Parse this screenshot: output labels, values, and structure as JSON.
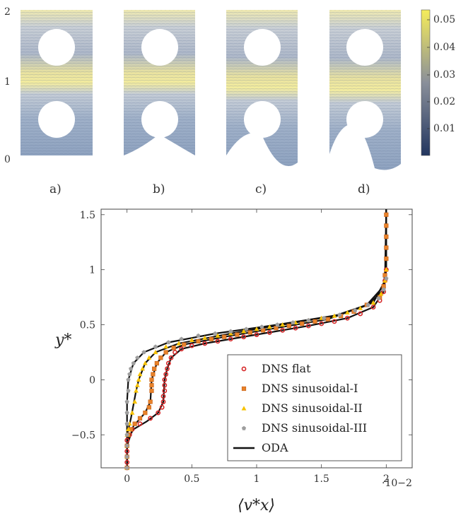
{
  "panels": {
    "labels": [
      "a)",
      "b)",
      "c)",
      "d)"
    ],
    "y_ticks": [
      "0",
      "1",
      "2"
    ]
  },
  "colorbar": {
    "ticks": [
      "0.05",
      "0.04",
      "0.03",
      "0.02",
      "0.01"
    ],
    "colors": {
      "high": "#f5ec5a",
      "mid": "#8a8f9a",
      "low": "#23365f"
    }
  },
  "chart_data": {
    "type": "scatter",
    "xlabel": "⟨v*x⟩",
    "ylabel": "y*",
    "x_multiplier": "·10−2",
    "xlim": [
      -0.2,
      2.2
    ],
    "ylim": [
      -0.8,
      1.55
    ],
    "x_ticks": [
      "0",
      "0.5",
      "1",
      "1.5",
      "2"
    ],
    "y_ticks": [
      "−0.5",
      "0",
      "0.5",
      "1",
      "1.5"
    ],
    "legend_position": "bottom-right",
    "series": [
      {
        "name": "DNS flat",
        "marker": "circle",
        "color": "#d62728",
        "points": [
          [
            0.0,
            -0.8
          ],
          [
            0.0,
            -0.75
          ],
          [
            0.0,
            -0.7
          ],
          [
            0.0,
            -0.65
          ],
          [
            0.0,
            -0.6
          ],
          [
            0.0,
            -0.55
          ],
          [
            0.02,
            -0.5
          ],
          [
            0.04,
            -0.45
          ],
          [
            0.1,
            -0.4
          ],
          [
            0.18,
            -0.35
          ],
          [
            0.24,
            -0.3
          ],
          [
            0.27,
            -0.25
          ],
          [
            0.28,
            -0.2
          ],
          [
            0.28,
            -0.15
          ],
          [
            0.29,
            -0.1
          ],
          [
            0.29,
            -0.05
          ],
          [
            0.29,
            0.0
          ],
          [
            0.3,
            0.05
          ],
          [
            0.31,
            0.1
          ],
          [
            0.32,
            0.15
          ],
          [
            0.34,
            0.2
          ],
          [
            0.37,
            0.25
          ],
          [
            0.42,
            0.28
          ],
          [
            0.5,
            0.31
          ],
          [
            0.6,
            0.33
          ],
          [
            0.7,
            0.35
          ],
          [
            0.8,
            0.37
          ],
          [
            0.9,
            0.39
          ],
          [
            1.0,
            0.41
          ],
          [
            1.1,
            0.43
          ],
          [
            1.2,
            0.45
          ],
          [
            1.3,
            0.47
          ],
          [
            1.4,
            0.49
          ],
          [
            1.5,
            0.51
          ],
          [
            1.6,
            0.53
          ],
          [
            1.7,
            0.56
          ],
          [
            1.8,
            0.6
          ],
          [
            1.9,
            0.66
          ],
          [
            1.95,
            0.72
          ],
          [
            1.98,
            0.8
          ],
          [
            1.99,
            0.9
          ],
          [
            2.0,
            1.0
          ]
        ]
      },
      {
        "name": "DNS sinusoidal-I",
        "marker": "square",
        "color": "#e8822a",
        "points": [
          [
            0.0,
            -0.8
          ],
          [
            0.0,
            -0.7
          ],
          [
            0.0,
            -0.6
          ],
          [
            0.01,
            -0.5
          ],
          [
            0.03,
            -0.45
          ],
          [
            0.06,
            -0.4
          ],
          [
            0.1,
            -0.35
          ],
          [
            0.14,
            -0.3
          ],
          [
            0.17,
            -0.25
          ],
          [
            0.18,
            -0.2
          ],
          [
            0.19,
            -0.1
          ],
          [
            0.19,
            -0.05
          ],
          [
            0.19,
            0.0
          ],
          [
            0.2,
            0.05
          ],
          [
            0.21,
            0.1
          ],
          [
            0.23,
            0.15
          ],
          [
            0.26,
            0.2
          ],
          [
            0.3,
            0.25
          ],
          [
            0.36,
            0.29
          ],
          [
            0.44,
            0.32
          ],
          [
            0.55,
            0.35
          ],
          [
            0.65,
            0.37
          ],
          [
            0.75,
            0.39
          ],
          [
            0.85,
            0.41
          ],
          [
            0.95,
            0.43
          ],
          [
            1.05,
            0.45
          ],
          [
            1.15,
            0.47
          ],
          [
            1.25,
            0.49
          ],
          [
            1.35,
            0.51
          ],
          [
            1.45,
            0.53
          ],
          [
            1.55,
            0.55
          ],
          [
            1.65,
            0.58
          ],
          [
            1.75,
            0.62
          ],
          [
            1.85,
            0.68
          ],
          [
            1.95,
            0.75
          ],
          [
            1.98,
            0.85
          ],
          [
            1.99,
            0.95
          ],
          [
            2.0,
            1.1
          ],
          [
            2.0,
            1.2
          ],
          [
            2.0,
            1.3
          ],
          [
            2.0,
            1.4
          ],
          [
            2.0,
            1.5
          ]
        ]
      },
      {
        "name": "DNS sinusoidal-II",
        "marker": "triangle",
        "color": "#f7c200",
        "points": [
          [
            0.0,
            -0.8
          ],
          [
            0.0,
            -0.7
          ],
          [
            0.0,
            -0.6
          ],
          [
            0.0,
            -0.5
          ],
          [
            0.01,
            -0.45
          ],
          [
            0.02,
            -0.4
          ],
          [
            0.04,
            -0.3
          ],
          [
            0.06,
            -0.2
          ],
          [
            0.07,
            -0.1
          ],
          [
            0.08,
            -0.05
          ],
          [
            0.09,
            0.0
          ],
          [
            0.1,
            0.05
          ],
          [
            0.12,
            0.1
          ],
          [
            0.14,
            0.15
          ],
          [
            0.17,
            0.2
          ],
          [
            0.22,
            0.25
          ],
          [
            0.3,
            0.3
          ],
          [
            0.4,
            0.33
          ],
          [
            0.5,
            0.36
          ],
          [
            0.6,
            0.38
          ],
          [
            0.7,
            0.4
          ],
          [
            0.8,
            0.42
          ],
          [
            0.9,
            0.44
          ],
          [
            1.0,
            0.46
          ],
          [
            1.1,
            0.48
          ],
          [
            1.2,
            0.5
          ],
          [
            1.3,
            0.52
          ],
          [
            1.4,
            0.54
          ],
          [
            1.5,
            0.56
          ],
          [
            1.6,
            0.58
          ],
          [
            1.7,
            0.61
          ],
          [
            1.8,
            0.65
          ],
          [
            1.9,
            0.7
          ],
          [
            1.96,
            0.78
          ],
          [
            1.99,
            0.9
          ],
          [
            2.0,
            1.0
          ]
        ]
      },
      {
        "name": "DNS sinusoidal-III",
        "marker": "pentagon",
        "color": "#9e9e9e",
        "points": [
          [
            0.0,
            -0.8
          ],
          [
            0.0,
            -0.7
          ],
          [
            0.0,
            -0.6
          ],
          [
            0.0,
            -0.5
          ],
          [
            0.0,
            -0.4
          ],
          [
            0.0,
            -0.3
          ],
          [
            0.0,
            -0.2
          ],
          [
            0.01,
            -0.1
          ],
          [
            0.01,
            0.0
          ],
          [
            0.02,
            0.05
          ],
          [
            0.03,
            0.1
          ],
          [
            0.05,
            0.15
          ],
          [
            0.08,
            0.2
          ],
          [
            0.13,
            0.25
          ],
          [
            0.22,
            0.3
          ],
          [
            0.32,
            0.34
          ],
          [
            0.42,
            0.37
          ],
          [
            0.55,
            0.4
          ],
          [
            0.68,
            0.42
          ],
          [
            0.8,
            0.44
          ],
          [
            0.92,
            0.46
          ],
          [
            1.04,
            0.48
          ],
          [
            1.16,
            0.5
          ],
          [
            1.28,
            0.52
          ],
          [
            1.4,
            0.54
          ],
          [
            1.52,
            0.56
          ],
          [
            1.64,
            0.59
          ],
          [
            1.76,
            0.63
          ],
          [
            1.86,
            0.68
          ],
          [
            1.94,
            0.74
          ],
          [
            1.98,
            0.82
          ],
          [
            2.0,
            0.92
          ]
        ]
      },
      {
        "name": "ODA",
        "marker": "line",
        "color": "#111111",
        "curves": [
          [
            [
              0.0,
              -0.8
            ],
            [
              0.0,
              -0.55
            ],
            [
              0.05,
              -0.45
            ],
            [
              0.15,
              -0.38
            ],
            [
              0.24,
              -0.3
            ],
            [
              0.28,
              -0.2
            ],
            [
              0.29,
              0.0
            ],
            [
              0.31,
              0.1
            ],
            [
              0.34,
              0.2
            ],
            [
              0.42,
              0.28
            ],
            [
              0.6,
              0.33
            ],
            [
              1.0,
              0.41
            ],
            [
              1.4,
              0.49
            ],
            [
              1.7,
              0.56
            ],
            [
              1.9,
              0.66
            ],
            [
              1.98,
              0.8
            ],
            [
              2.0,
              1.0
            ],
            [
              2.0,
              1.55
            ]
          ],
          [
            [
              0.0,
              -0.8
            ],
            [
              0.0,
              -0.6
            ],
            [
              0.05,
              -0.42
            ],
            [
              0.14,
              -0.3
            ],
            [
              0.18,
              -0.2
            ],
            [
              0.19,
              0.0
            ],
            [
              0.23,
              0.15
            ],
            [
              0.3,
              0.25
            ],
            [
              0.44,
              0.32
            ],
            [
              0.75,
              0.39
            ],
            [
              1.15,
              0.47
            ],
            [
              1.55,
              0.55
            ],
            [
              1.85,
              0.68
            ],
            [
              1.98,
              0.85
            ],
            [
              2.0,
              1.1
            ],
            [
              2.0,
              1.55
            ]
          ],
          [
            [
              0.0,
              -0.8
            ],
            [
              0.0,
              -0.5
            ],
            [
              0.03,
              -0.35
            ],
            [
              0.07,
              -0.1
            ],
            [
              0.09,
              0.0
            ],
            [
              0.14,
              0.15
            ],
            [
              0.22,
              0.25
            ],
            [
              0.4,
              0.33
            ],
            [
              0.8,
              0.42
            ],
            [
              1.2,
              0.5
            ],
            [
              1.6,
              0.58
            ],
            [
              1.9,
              0.7
            ],
            [
              1.99,
              0.9
            ],
            [
              2.0,
              1.55
            ]
          ],
          [
            [
              0.0,
              -0.8
            ],
            [
              0.0,
              -0.2
            ],
            [
              0.01,
              0.0
            ],
            [
              0.05,
              0.15
            ],
            [
              0.13,
              0.25
            ],
            [
              0.32,
              0.34
            ],
            [
              0.68,
              0.42
            ],
            [
              1.16,
              0.5
            ],
            [
              1.64,
              0.59
            ],
            [
              1.86,
              0.68
            ],
            [
              1.98,
              0.82
            ],
            [
              2.0,
              1.0
            ],
            [
              2.0,
              1.55
            ]
          ]
        ]
      }
    ]
  }
}
